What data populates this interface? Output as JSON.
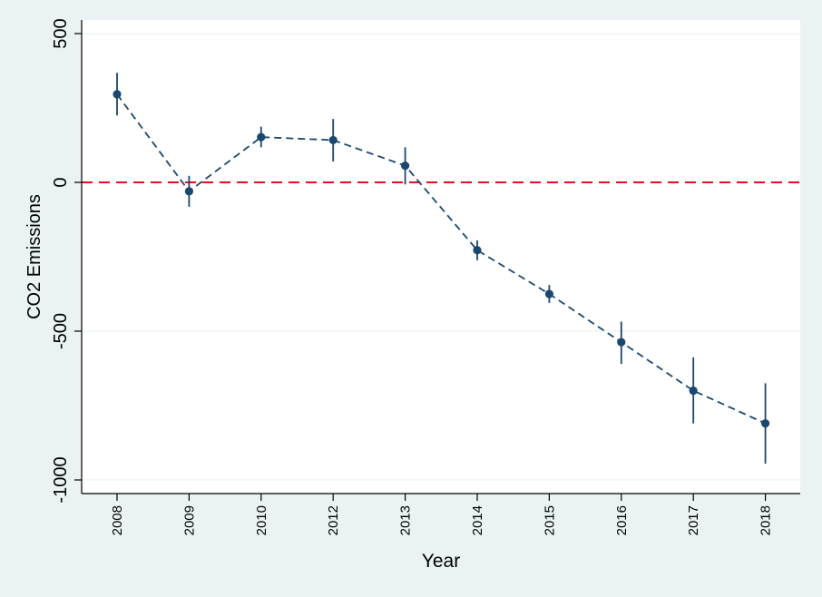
{
  "chart_data": {
    "type": "line",
    "title": "",
    "xlabel": "Year",
    "ylabel": "CO2 Emissions",
    "categories": [
      "2008",
      "2009",
      "2010",
      "2012",
      "2013",
      "2014",
      "2015",
      "2016",
      "2017",
      "2018"
    ],
    "series": [
      {
        "values": [
          296,
          -30,
          152,
          142,
          56,
          -228,
          -375,
          -537,
          -700,
          -810
        ],
        "ci_lower": [
          225,
          -82,
          118,
          70,
          -7,
          -262,
          -405,
          -610,
          -810,
          -945
        ],
        "ci_upper": [
          368,
          22,
          187,
          213,
          118,
          -195,
          -345,
          -468,
          -588,
          -675
        ]
      }
    ],
    "yticks": [
      500,
      0,
      -500,
      -1000
    ],
    "ytick_labels": [
      "500",
      "0",
      "-500",
      "-1000"
    ],
    "ylim": [
      -1050,
      540
    ],
    "reference_line": 0,
    "grid": true,
    "colors": {
      "background": "#eaf2f3",
      "plot_background": "#ffffff",
      "series": "#1a476f",
      "reference_line": "#e8101b",
      "grid": "#eaf2f3"
    }
  }
}
